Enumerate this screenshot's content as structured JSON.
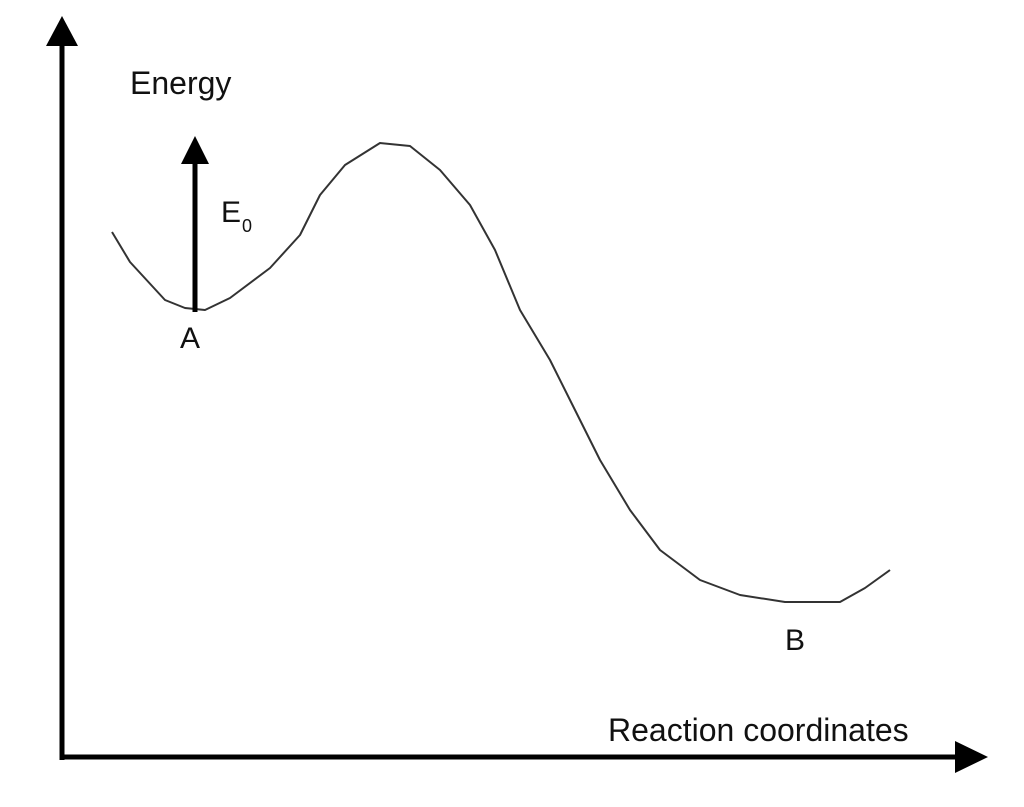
{
  "axes": {
    "y_label": "Energy",
    "x_label": "Reaction coordinates"
  },
  "energy_arrow": {
    "label": "E",
    "subscript": "0"
  },
  "states": {
    "start": "A",
    "end": "B"
  }
}
